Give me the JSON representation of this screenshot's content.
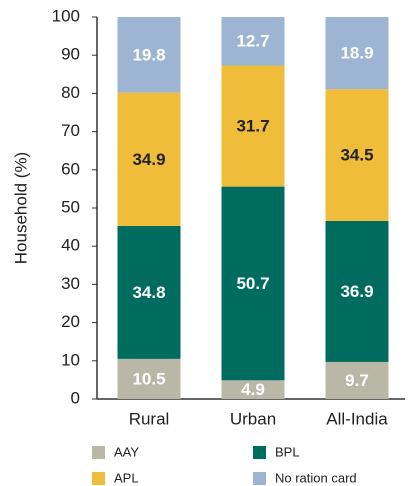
{
  "chart_data": {
    "type": "stacked_bar",
    "y_label": "Household (%)",
    "categories": [
      "Rural",
      "Urban",
      "All-India"
    ],
    "series": [
      {
        "name": "AAY",
        "color": "#b9b8a7",
        "values": [
          10.5,
          4.9,
          9.7
        ]
      },
      {
        "name": "BPL",
        "color": "#006b5f",
        "values": [
          34.8,
          50.7,
          36.9
        ]
      },
      {
        "name": "APL",
        "color": "#f0bd3a",
        "values": [
          34.9,
          31.7,
          34.5
        ]
      },
      {
        "name": "No ration card",
        "color": "#9db5d3",
        "values": [
          19.8,
          12.7,
          18.9
        ]
      }
    ],
    "ylim": [
      0,
      100
    ],
    "yticks": [
      0,
      10,
      20,
      30,
      40,
      50,
      60,
      70,
      80,
      90,
      100
    ]
  }
}
